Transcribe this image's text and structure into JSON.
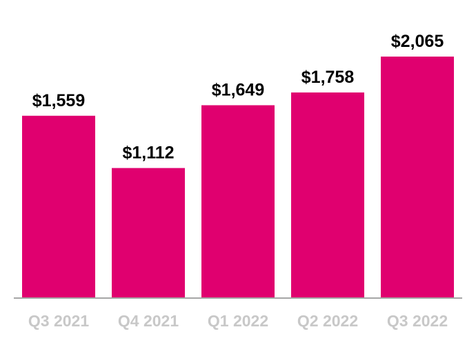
{
  "chart_data": {
    "type": "bar",
    "categories": [
      "Q3 2021",
      "Q4 2021",
      "Q1 2022",
      "Q2 2022",
      "Q3 2022"
    ],
    "values": [
      1559,
      1112,
      1649,
      1758,
      2065
    ],
    "data_labels": [
      "$1,559",
      "$1,112",
      "$1,649",
      "$1,758",
      "$2,065"
    ],
    "title": "",
    "xlabel": "",
    "ylabel": "",
    "ylim": [
      0,
      2065
    ],
    "grid": false,
    "legend": "none",
    "colors": {
      "bar": "#E0006F",
      "axis": "#A6A6A6",
      "tick_text": "#C8C8C8",
      "value_text": "#000000"
    }
  }
}
